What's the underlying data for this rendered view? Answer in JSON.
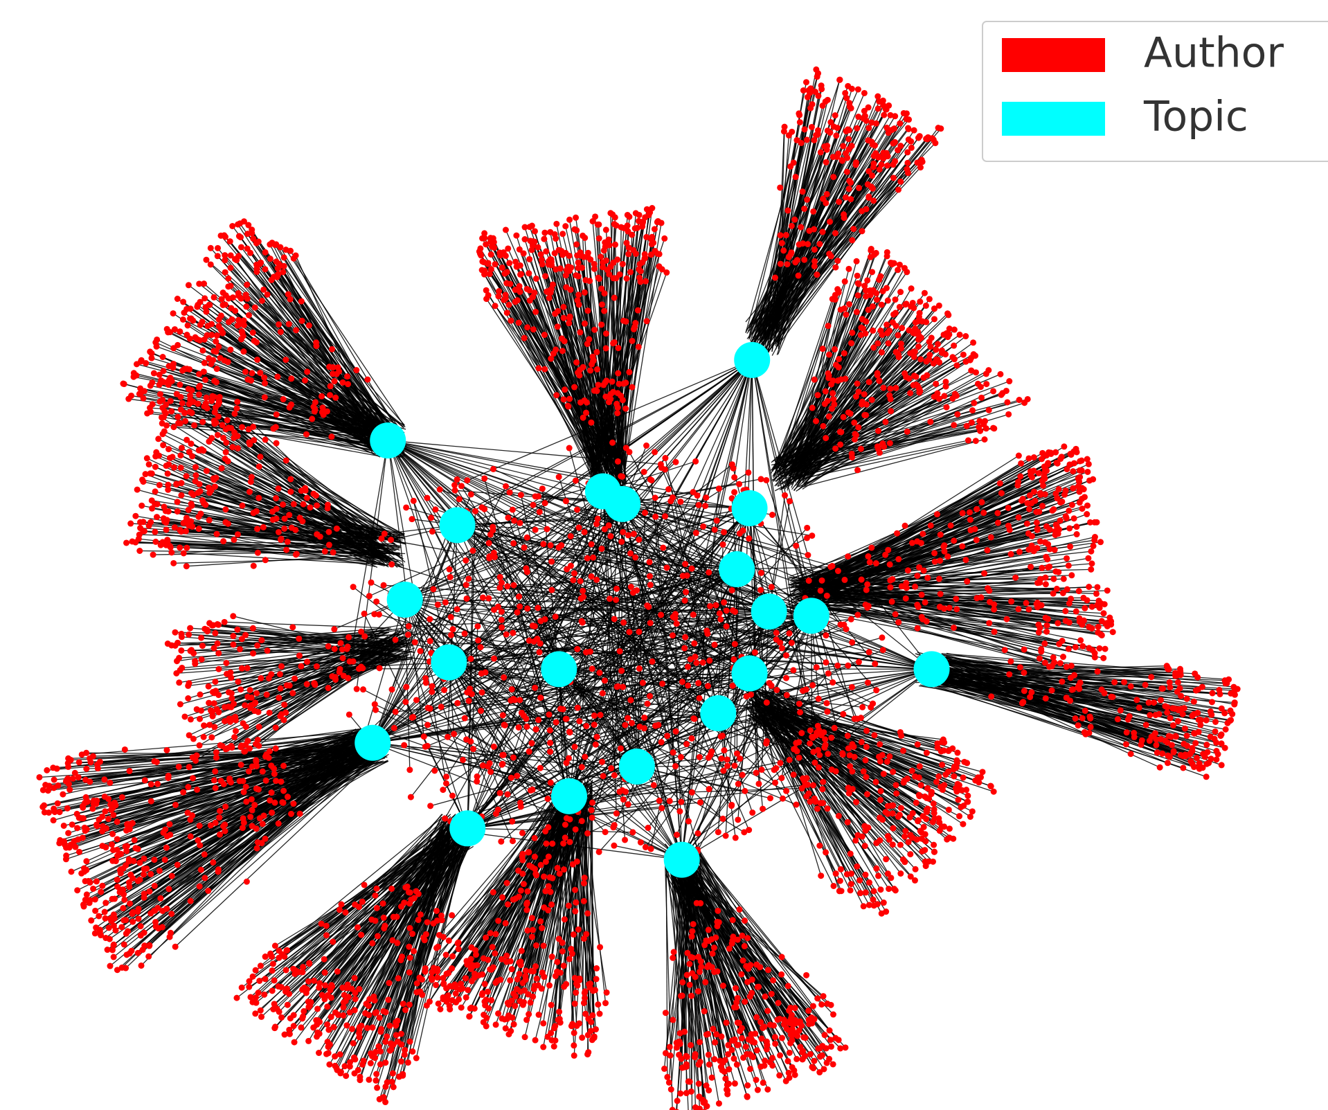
{
  "legend": {
    "items": [
      {
        "label": "Author",
        "color": "#ff0000"
      },
      {
        "label": "Topic",
        "color": "#00ffff"
      }
    ]
  }
}
